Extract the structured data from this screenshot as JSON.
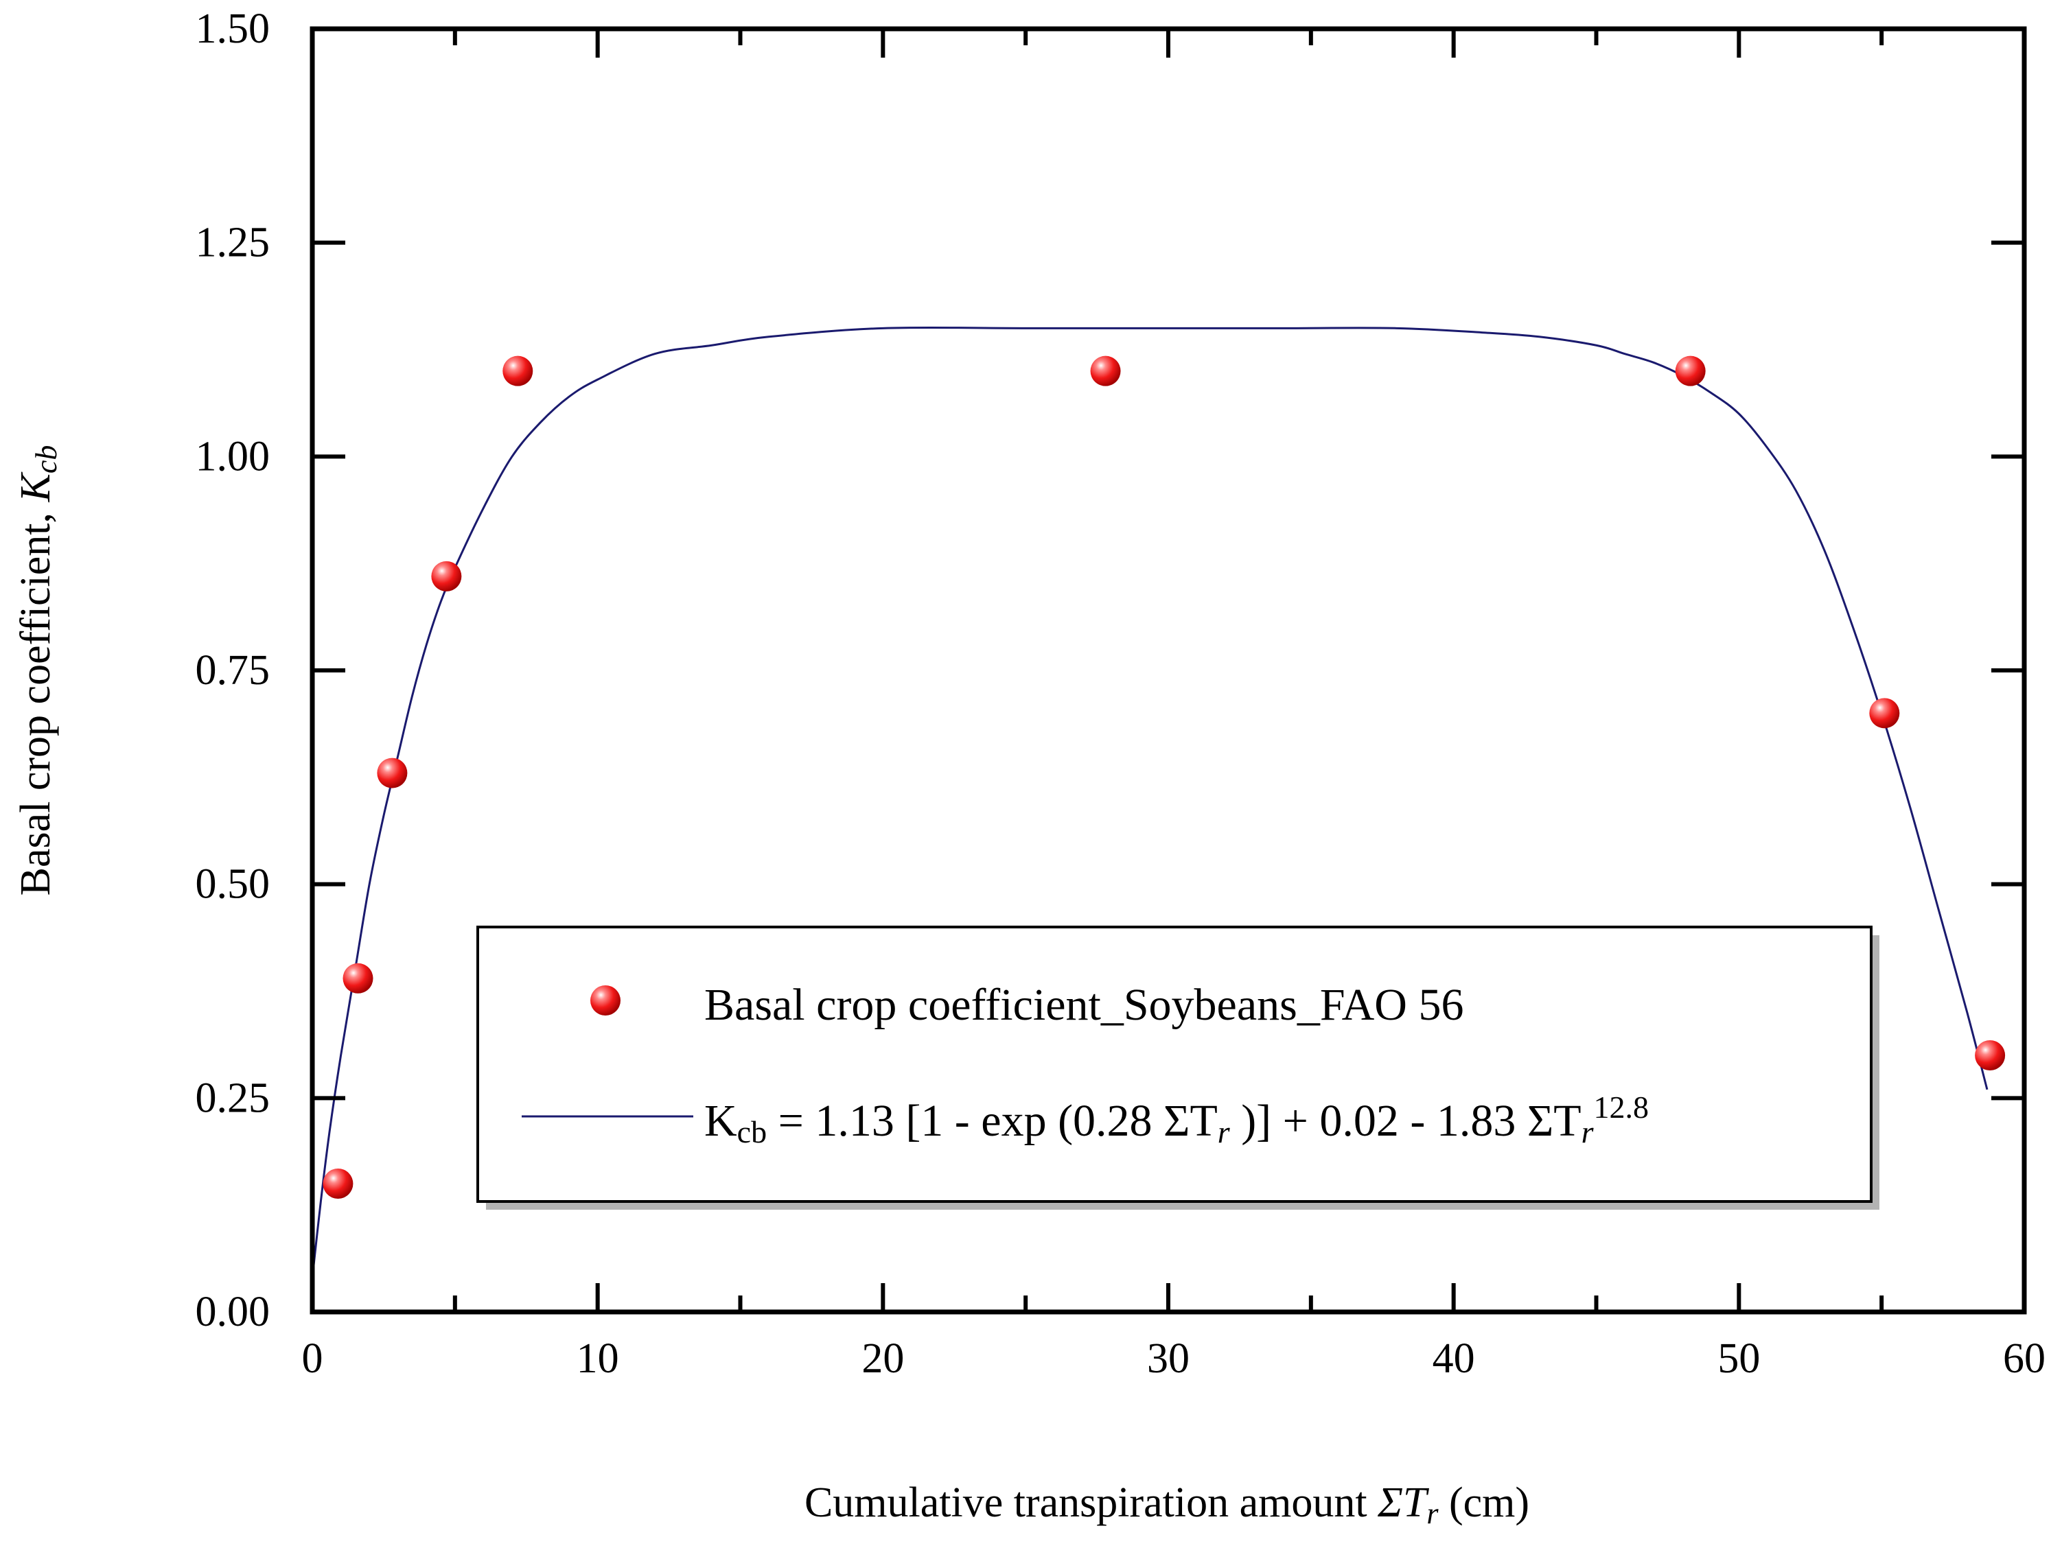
{
  "chart_data": {
    "type": "scatter",
    "xlabel": {
      "main": "Cumulative transpiration amount ",
      "sigma": "ΣT",
      "sub": "r",
      "unit": " (cm)"
    },
    "ylabel": {
      "main": "Basal crop coefficient, ",
      "sym": "K",
      "sub": "cb"
    },
    "xlim": [
      0,
      60
    ],
    "ylim": [
      0,
      1.5
    ],
    "x_ticks": [
      "0",
      "10",
      "20",
      "30",
      "40",
      "50",
      "60"
    ],
    "y_ticks": [
      "0.00",
      "0.25",
      "0.50",
      "0.75",
      "1.00",
      "1.25",
      "1.50"
    ],
    "grid": false,
    "legend_position": "lower-center",
    "series": [
      {
        "name": "Basal crop coefficient_Soybeans_FAO 56",
        "kind": "scatter",
        "color": "#ff2020",
        "x": [
          0.9,
          1.6,
          2.8,
          4.7,
          7.2,
          27.8,
          48.3,
          55.1,
          58.8
        ],
        "y": [
          0.15,
          0.39,
          0.63,
          0.86,
          1.1,
          1.1,
          1.1,
          0.7,
          0.3
        ]
      },
      {
        "name": "Kcb = 1.13 [1 - exp (0.28 ΣTr )] + 0.02 - 1.83 ΣTr^12.8",
        "kind": "line",
        "color": "#1a1a6e",
        "label_parts": {
          "k": "K",
          "cb": "cb",
          "eq1": " = 1.13 [1 - exp (0.28 ΣT",
          "r1": "r",
          "eq2": " )] + 0.02 - 1.83 ΣT",
          "r2": "r",
          "exp": "12.8"
        },
        "x": [
          0.0,
          0.3,
          0.6,
          1.0,
          1.5,
          2.0,
          2.5,
          3.0,
          3.5,
          4.0,
          4.5,
          5.0,
          6.0,
          7.0,
          8.0,
          9.0,
          10.0,
          12.0,
          14.0,
          16.0,
          20.0,
          25.0,
          30.0,
          34.0,
          38.0,
          41.0,
          43.0,
          45.0,
          46.0,
          47.0,
          48.0,
          49.0,
          50.0,
          51.0,
          52.0,
          53.0,
          54.0,
          55.0,
          56.0,
          57.0,
          58.0,
          58.7
        ],
        "y": [
          0.04,
          0.13,
          0.21,
          0.3,
          0.4,
          0.5,
          0.58,
          0.65,
          0.72,
          0.78,
          0.83,
          0.87,
          0.94,
          1.0,
          1.04,
          1.07,
          1.09,
          1.12,
          1.13,
          1.14,
          1.15,
          1.15,
          1.15,
          1.15,
          1.15,
          1.145,
          1.14,
          1.13,
          1.12,
          1.11,
          1.095,
          1.075,
          1.05,
          1.01,
          0.96,
          0.89,
          0.8,
          0.7,
          0.59,
          0.47,
          0.35,
          0.26
        ]
      }
    ]
  }
}
